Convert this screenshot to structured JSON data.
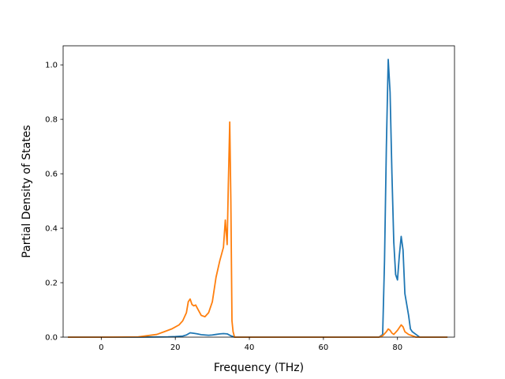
{
  "chart_data": {
    "type": "line",
    "title": "",
    "xlabel": "Frequency (THz)",
    "ylabel": "Partial Density of States",
    "xlim": [
      -10.3,
      95.4
    ],
    "ylim": [
      0,
      1.07
    ],
    "xticks": [
      0,
      20,
      40,
      60,
      80
    ],
    "xtick_labels": [
      "0",
      "20",
      "40",
      "60",
      "80"
    ],
    "yticks": [
      0.0,
      0.2,
      0.4,
      0.6,
      0.8,
      1.0
    ],
    "ytick_labels": [
      "0.0",
      "0.2",
      "0.4",
      "0.6",
      "0.8",
      "1.0"
    ],
    "grid": false,
    "legend": "none",
    "series": [
      {
        "color": "#1f77b4",
        "x": [
          -9,
          0,
          10,
          18,
          20,
          22,
          23,
          24,
          25,
          26,
          27,
          28,
          29,
          30,
          31,
          32,
          33,
          34,
          35,
          36,
          40,
          50,
          60,
          70,
          75,
          76,
          76.5,
          77,
          77.5,
          78,
          78.5,
          79,
          79.5,
          80,
          80.5,
          81,
          81.5,
          82,
          82.5,
          83,
          83.5,
          84,
          85,
          86,
          90,
          93.5
        ],
        "y": [
          0,
          0,
          0,
          0.001,
          0.002,
          0.004,
          0.008,
          0.016,
          0.014,
          0.012,
          0.009,
          0.008,
          0.007,
          0.008,
          0.01,
          0.012,
          0.013,
          0.012,
          0.005,
          0.0,
          0,
          0,
          0,
          0,
          0,
          0.01,
          0.28,
          0.7,
          1.02,
          0.9,
          0.6,
          0.35,
          0.23,
          0.21,
          0.3,
          0.37,
          0.32,
          0.16,
          0.12,
          0.08,
          0.03,
          0.02,
          0.01,
          0.0,
          0,
          0
        ]
      },
      {
        "color": "#ff7f0e",
        "x": [
          -9,
          0,
          10,
          15,
          17,
          19,
          21,
          22,
          23,
          23.5,
          24,
          24.5,
          25,
          25.5,
          26,
          27,
          28,
          29,
          30,
          31,
          32,
          33,
          33.5,
          34,
          34.3,
          34.7,
          35,
          35.3,
          35.6,
          36,
          37,
          40,
          60,
          75,
          76,
          77,
          77.5,
          78,
          78.5,
          79,
          80,
          81,
          81.5,
          82,
          83,
          84,
          85,
          90,
          93.5
        ],
        "y": [
          0,
          0,
          0.001,
          0.01,
          0.02,
          0.03,
          0.045,
          0.06,
          0.09,
          0.13,
          0.14,
          0.12,
          0.115,
          0.118,
          0.105,
          0.08,
          0.075,
          0.09,
          0.13,
          0.22,
          0.28,
          0.33,
          0.43,
          0.34,
          0.55,
          0.79,
          0.5,
          0.06,
          0.02,
          0.0,
          0,
          0,
          0,
          0,
          0.005,
          0.02,
          0.03,
          0.025,
          0.015,
          0.01,
          0.025,
          0.045,
          0.038,
          0.02,
          0.01,
          0.005,
          0.0,
          0,
          0
        ]
      }
    ]
  }
}
